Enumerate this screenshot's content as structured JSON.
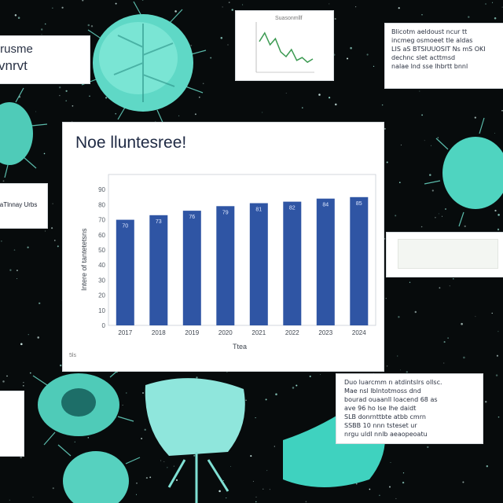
{
  "chart_data": {
    "type": "bar",
    "title": "Noe lluntesree!",
    "xlabel": "Ttea",
    "ylabel": "Intere of tantetetsns",
    "categories": [
      "2017",
      "2018",
      "2019",
      "2020",
      "2021",
      "2022",
      "2023",
      "2024"
    ],
    "values": [
      70,
      73,
      76,
      79,
      81,
      82,
      84,
      85
    ],
    "data_labels": [
      "70",
      "73",
      "76",
      "79",
      "81",
      "82",
      "84",
      "85"
    ],
    "yticks": [
      "0",
      "10",
      "20",
      "30",
      "40",
      "50",
      "60",
      "70",
      "80",
      "90"
    ],
    "ylim": [
      0,
      100
    ],
    "grid": false,
    "bar_color": "#2f55a4",
    "footnote": "5ls"
  },
  "inset_chart": {
    "type": "line",
    "title": "Suasonmllf",
    "values": [
      62,
      80,
      55,
      68,
      40,
      30,
      45,
      22,
      28,
      18,
      25
    ],
    "line_color": "#3c9a52"
  },
  "cards": {
    "top_left": {
      "line1": "Irusme",
      "line2": "vnrvt"
    },
    "top_right": {
      "text": "Blicotm aeldoust ncur tt\nincmeg osmoeet tle aldas\nLIS aS BTSIUUOSIT Ns mS OKI\ndechnc slet acttmsd\nnalae lnd sse lhbrtt bnnl"
    },
    "mid_left": {
      "text": "laTlnnay Urbs"
    },
    "mid_right": {
      "text": ""
    },
    "bottom_left": {
      "text": ""
    },
    "bottom_right": {
      "text": "Duo luarcmm n atdintslrs ollsc.\nMae nsl lblntotmoss dnd\nbourad ouaanll loacend 68 as\nave 96 ho lse lhe daidt\nSLB donrnttbte atbb cmrn\nSSBB 10 nnn tsteset ur\nnrgu uldl nnlb aeaopeoatu"
    }
  },
  "colors": {
    "background": "#070b0c",
    "microbe": "#5fe0c8",
    "card": "#ffffff"
  }
}
